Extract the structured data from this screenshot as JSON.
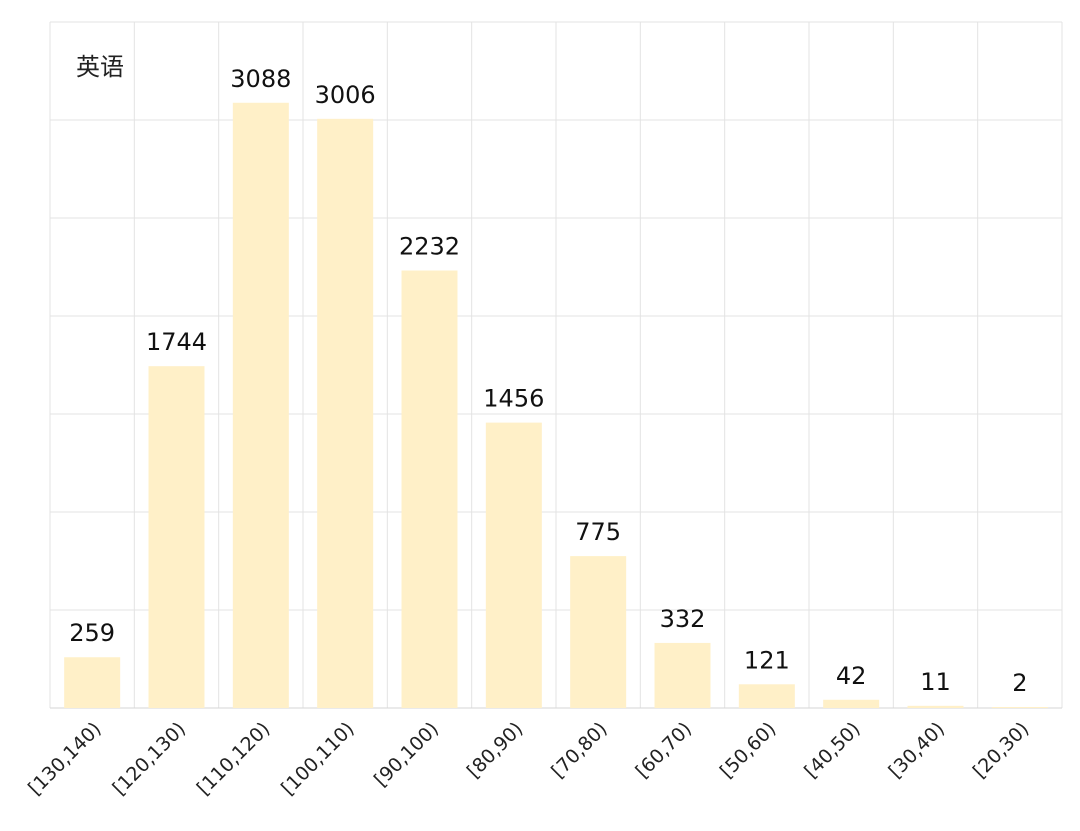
{
  "chart_data": {
    "type": "bar",
    "title": "英语",
    "categories": [
      "[130,140)",
      "[120,130)",
      "[110,120)",
      "[100,110)",
      "[90,100)",
      "[80,90)",
      "[70,80)",
      "[60,70)",
      "[50,60)",
      "[40,50)",
      "[30,40)",
      "[20,30)"
    ],
    "values": [
      259,
      1744,
      3088,
      3006,
      2232,
      1456,
      775,
      332,
      121,
      42,
      11,
      2
    ],
    "xlabel": "",
    "ylabel": "",
    "ylim": [
      0,
      3500
    ],
    "grid": true,
    "legend": "none",
    "bar_color": "#fff0c8"
  }
}
